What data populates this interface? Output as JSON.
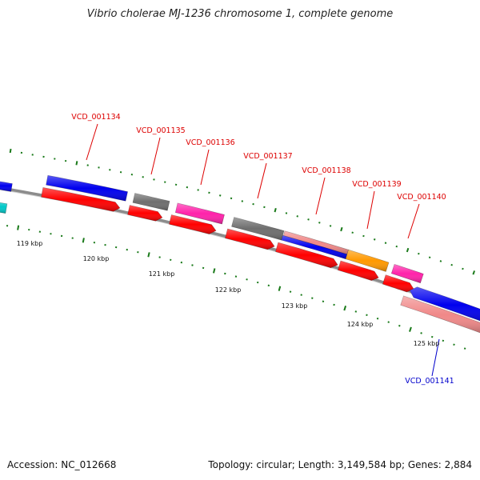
{
  "title": "Vibrio cholerae MJ-1236 chromosome 1, complete genome",
  "footer": {
    "accession": "Accession: NC_012668",
    "summary": "Topology: circular; Length: 3,149,584 bp; Genes: 2,884"
  },
  "colors": {
    "backbone": "#8c8c8c",
    "forward_cds": "#0000ee",
    "reverse_cds": "#ff0000",
    "rna_gray": "#6e6e6e",
    "magenta": "#ff22aa",
    "orange": "#ff9900",
    "salmon": "#f08888",
    "cyan": "#00c8c8",
    "tick": "#1a7a1a",
    "label_red": "#dd0000",
    "label_blue": "#0000cc"
  },
  "ruler_labels": [
    "119 kbp",
    "120 kbp",
    "121 kbp",
    "122 kbp",
    "123 kbp",
    "124 kbp",
    "125 kbp"
  ],
  "gene_labels": [
    {
      "text": "VCD_001134",
      "color": "red"
    },
    {
      "text": "VCD_001135",
      "color": "red"
    },
    {
      "text": "VCD_001136",
      "color": "red"
    },
    {
      "text": "VCD_001137",
      "color": "red"
    },
    {
      "text": "VCD_001138",
      "color": "red"
    },
    {
      "text": "VCD_001139",
      "color": "red"
    },
    {
      "text": "VCD_001140",
      "color": "red"
    },
    {
      "text": "VCD_001141",
      "color": "blue"
    }
  ]
}
